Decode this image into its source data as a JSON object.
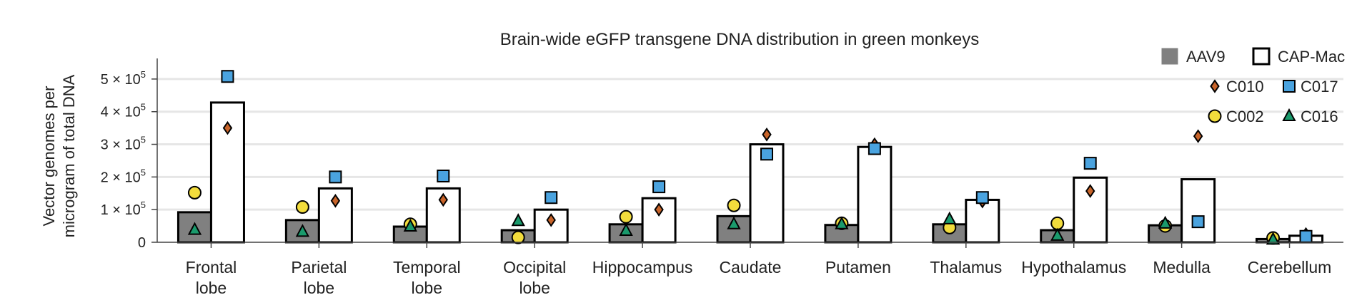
{
  "chart_data": {
    "type": "bar",
    "title": "Brain-wide eGFP transgene DNA distribution in green monkeys",
    "ylabel_lines": [
      "Vector genomes per",
      "microgram of total DNA"
    ],
    "xlabel": "",
    "ylim": [
      0,
      550000
    ],
    "yticks": [
      {
        "value": 0,
        "label": "0"
      },
      {
        "value": 100000,
        "label": "1 × 10",
        "exp": "5"
      },
      {
        "value": 200000,
        "label": "2 × 10",
        "exp": "5"
      },
      {
        "value": 300000,
        "label": "3 × 10",
        "exp": "5"
      },
      {
        "value": 400000,
        "label": "4 × 10",
        "exp": "5"
      },
      {
        "value": 500000,
        "label": "5 × 10",
        "exp": "5"
      }
    ],
    "grid": true,
    "legend_placement": "top-right",
    "categories": [
      [
        "Frontal",
        "lobe"
      ],
      [
        "Parietal",
        "lobe"
      ],
      [
        "Temporal",
        "lobe"
      ],
      [
        "Occipital",
        "lobe"
      ],
      [
        "Hippocampus"
      ],
      [
        "Caudate"
      ],
      [
        "Putamen"
      ],
      [
        "Thalamus"
      ],
      [
        "Hypothalamus"
      ],
      [
        "Medulla"
      ],
      [
        "Cerebellum"
      ]
    ],
    "bar_series": [
      {
        "name": "AAV9",
        "color": "#808080",
        "values": [
          92000,
          68000,
          48000,
          37000,
          55000,
          80000,
          53000,
          55000,
          37000,
          52000,
          10000
        ]
      },
      {
        "name": "CAP-Mac",
        "color": "#ffffff",
        "values": [
          428000,
          165000,
          165000,
          100000,
          135000,
          300000,
          292000,
          130000,
          198000,
          193000,
          20000
        ]
      }
    ],
    "point_series": [
      {
        "name": "C010",
        "marker": "diamond",
        "color": "#c8642a",
        "bar": "CAP-Mac",
        "values": [
          350000,
          127000,
          130000,
          68000,
          100000,
          330000,
          300000,
          125000,
          157000,
          325000,
          25000
        ]
      },
      {
        "name": "C017",
        "marker": "square",
        "color": "#4aa3df",
        "bar": "CAP-Mac",
        "values": [
          508000,
          200000,
          203000,
          137000,
          170000,
          270000,
          287000,
          137000,
          242000,
          63000,
          18000
        ]
      },
      {
        "name": "C002",
        "marker": "circle",
        "color": "#f2dc3c",
        "bar": "AAV9",
        "values": [
          152000,
          108000,
          55000,
          15000,
          78000,
          113000,
          58000,
          45000,
          58000,
          50000,
          13000
        ]
      },
      {
        "name": "C016",
        "marker": "triangle",
        "color": "#1a9a6c",
        "bar": "AAV9",
        "values": [
          38000,
          32000,
          48000,
          65000,
          35000,
          55000,
          55000,
          70000,
          20000,
          57000,
          8000
        ]
      }
    ]
  }
}
